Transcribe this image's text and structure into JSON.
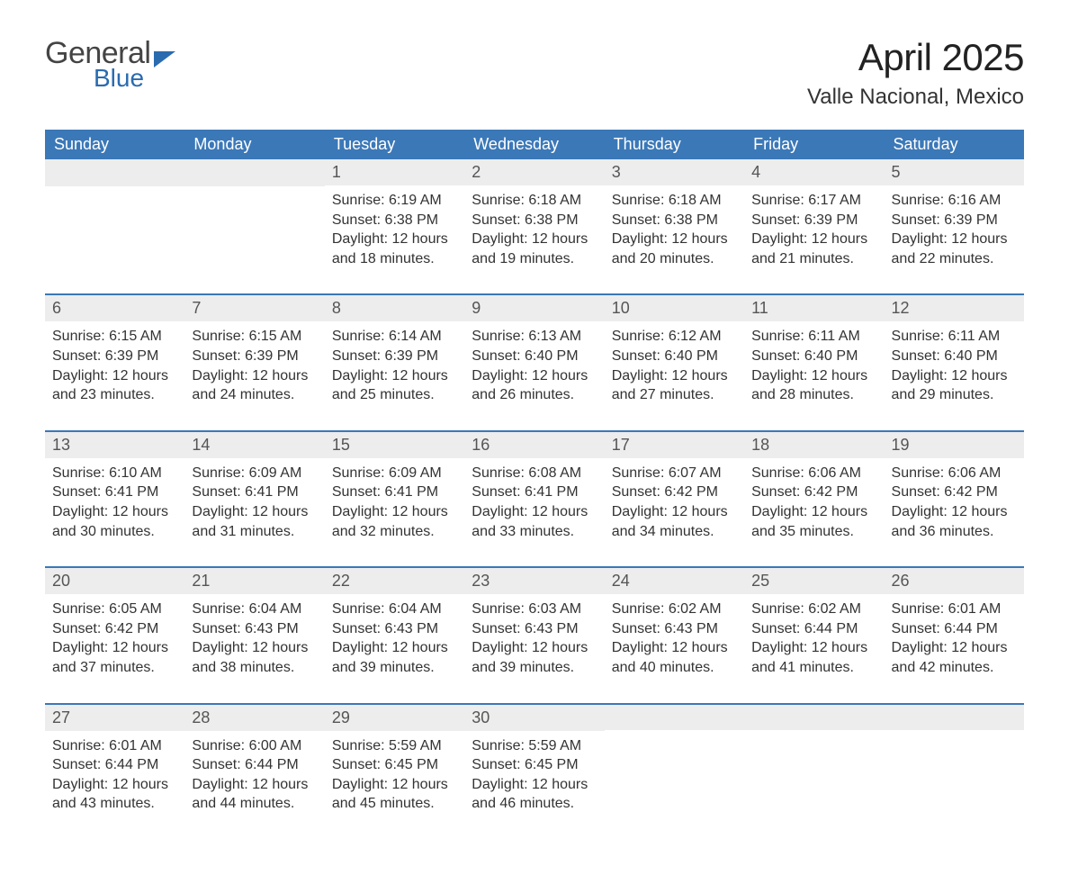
{
  "brand": {
    "word1": "General",
    "word2": "Blue",
    "word1_color": "#444444",
    "word2_color": "#2a6bb0"
  },
  "title": "April 2025",
  "location": "Valle Nacional, Mexico",
  "colors": {
    "header_bg": "#3b78b8",
    "header_text": "#ffffff",
    "daybar_bg": "#ededed",
    "rule": "#3b78b8",
    "body_text": "#333333",
    "page_bg": "#ffffff"
  },
  "day_labels": [
    "Sunday",
    "Monday",
    "Tuesday",
    "Wednesday",
    "Thursday",
    "Friday",
    "Saturday"
  ],
  "weeks": [
    [
      null,
      null,
      {
        "n": "1",
        "sunrise": "Sunrise: 6:19 AM",
        "sunset": "Sunset: 6:38 PM",
        "daylight": "Daylight: 12 hours and 18 minutes."
      },
      {
        "n": "2",
        "sunrise": "Sunrise: 6:18 AM",
        "sunset": "Sunset: 6:38 PM",
        "daylight": "Daylight: 12 hours and 19 minutes."
      },
      {
        "n": "3",
        "sunrise": "Sunrise: 6:18 AM",
        "sunset": "Sunset: 6:38 PM",
        "daylight": "Daylight: 12 hours and 20 minutes."
      },
      {
        "n": "4",
        "sunrise": "Sunrise: 6:17 AM",
        "sunset": "Sunset: 6:39 PM",
        "daylight": "Daylight: 12 hours and 21 minutes."
      },
      {
        "n": "5",
        "sunrise": "Sunrise: 6:16 AM",
        "sunset": "Sunset: 6:39 PM",
        "daylight": "Daylight: 12 hours and 22 minutes."
      }
    ],
    [
      {
        "n": "6",
        "sunrise": "Sunrise: 6:15 AM",
        "sunset": "Sunset: 6:39 PM",
        "daylight": "Daylight: 12 hours and 23 minutes."
      },
      {
        "n": "7",
        "sunrise": "Sunrise: 6:15 AM",
        "sunset": "Sunset: 6:39 PM",
        "daylight": "Daylight: 12 hours and 24 minutes."
      },
      {
        "n": "8",
        "sunrise": "Sunrise: 6:14 AM",
        "sunset": "Sunset: 6:39 PM",
        "daylight": "Daylight: 12 hours and 25 minutes."
      },
      {
        "n": "9",
        "sunrise": "Sunrise: 6:13 AM",
        "sunset": "Sunset: 6:40 PM",
        "daylight": "Daylight: 12 hours and 26 minutes."
      },
      {
        "n": "10",
        "sunrise": "Sunrise: 6:12 AM",
        "sunset": "Sunset: 6:40 PM",
        "daylight": "Daylight: 12 hours and 27 minutes."
      },
      {
        "n": "11",
        "sunrise": "Sunrise: 6:11 AM",
        "sunset": "Sunset: 6:40 PM",
        "daylight": "Daylight: 12 hours and 28 minutes."
      },
      {
        "n": "12",
        "sunrise": "Sunrise: 6:11 AM",
        "sunset": "Sunset: 6:40 PM",
        "daylight": "Daylight: 12 hours and 29 minutes."
      }
    ],
    [
      {
        "n": "13",
        "sunrise": "Sunrise: 6:10 AM",
        "sunset": "Sunset: 6:41 PM",
        "daylight": "Daylight: 12 hours and 30 minutes."
      },
      {
        "n": "14",
        "sunrise": "Sunrise: 6:09 AM",
        "sunset": "Sunset: 6:41 PM",
        "daylight": "Daylight: 12 hours and 31 minutes."
      },
      {
        "n": "15",
        "sunrise": "Sunrise: 6:09 AM",
        "sunset": "Sunset: 6:41 PM",
        "daylight": "Daylight: 12 hours and 32 minutes."
      },
      {
        "n": "16",
        "sunrise": "Sunrise: 6:08 AM",
        "sunset": "Sunset: 6:41 PM",
        "daylight": "Daylight: 12 hours and 33 minutes."
      },
      {
        "n": "17",
        "sunrise": "Sunrise: 6:07 AM",
        "sunset": "Sunset: 6:42 PM",
        "daylight": "Daylight: 12 hours and 34 minutes."
      },
      {
        "n": "18",
        "sunrise": "Sunrise: 6:06 AM",
        "sunset": "Sunset: 6:42 PM",
        "daylight": "Daylight: 12 hours and 35 minutes."
      },
      {
        "n": "19",
        "sunrise": "Sunrise: 6:06 AM",
        "sunset": "Sunset: 6:42 PM",
        "daylight": "Daylight: 12 hours and 36 minutes."
      }
    ],
    [
      {
        "n": "20",
        "sunrise": "Sunrise: 6:05 AM",
        "sunset": "Sunset: 6:42 PM",
        "daylight": "Daylight: 12 hours and 37 minutes."
      },
      {
        "n": "21",
        "sunrise": "Sunrise: 6:04 AM",
        "sunset": "Sunset: 6:43 PM",
        "daylight": "Daylight: 12 hours and 38 minutes."
      },
      {
        "n": "22",
        "sunrise": "Sunrise: 6:04 AM",
        "sunset": "Sunset: 6:43 PM",
        "daylight": "Daylight: 12 hours and 39 minutes."
      },
      {
        "n": "23",
        "sunrise": "Sunrise: 6:03 AM",
        "sunset": "Sunset: 6:43 PM",
        "daylight": "Daylight: 12 hours and 39 minutes."
      },
      {
        "n": "24",
        "sunrise": "Sunrise: 6:02 AM",
        "sunset": "Sunset: 6:43 PM",
        "daylight": "Daylight: 12 hours and 40 minutes."
      },
      {
        "n": "25",
        "sunrise": "Sunrise: 6:02 AM",
        "sunset": "Sunset: 6:44 PM",
        "daylight": "Daylight: 12 hours and 41 minutes."
      },
      {
        "n": "26",
        "sunrise": "Sunrise: 6:01 AM",
        "sunset": "Sunset: 6:44 PM",
        "daylight": "Daylight: 12 hours and 42 minutes."
      }
    ],
    [
      {
        "n": "27",
        "sunrise": "Sunrise: 6:01 AM",
        "sunset": "Sunset: 6:44 PM",
        "daylight": "Daylight: 12 hours and 43 minutes."
      },
      {
        "n": "28",
        "sunrise": "Sunrise: 6:00 AM",
        "sunset": "Sunset: 6:44 PM",
        "daylight": "Daylight: 12 hours and 44 minutes."
      },
      {
        "n": "29",
        "sunrise": "Sunrise: 5:59 AM",
        "sunset": "Sunset: 6:45 PM",
        "daylight": "Daylight: 12 hours and 45 minutes."
      },
      {
        "n": "30",
        "sunrise": "Sunrise: 5:59 AM",
        "sunset": "Sunset: 6:45 PM",
        "daylight": "Daylight: 12 hours and 46 minutes."
      },
      null,
      null,
      null
    ]
  ]
}
